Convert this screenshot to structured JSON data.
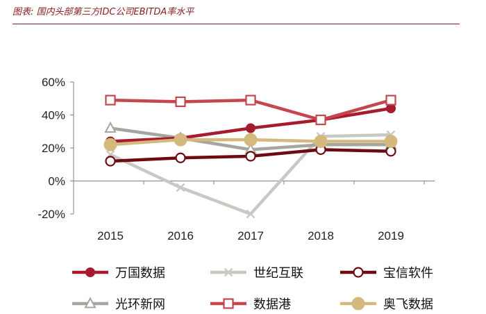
{
  "figure": {
    "title": "图表: 国内头部第三方IDC公司EBITDA率水平"
  },
  "chart_data": {
    "type": "line",
    "title": "图表: 国内头部第三方IDC公司EBITDA率水平",
    "xlabel": "",
    "ylabel": "",
    "categories": [
      "2015",
      "2016",
      "2017",
      "2018",
      "2019"
    ],
    "ylim": [
      -20,
      60
    ],
    "yticks": [
      -20,
      0,
      20,
      40,
      60
    ],
    "ytick_labels": [
      "-20%",
      "0%",
      "20%",
      "40%",
      "60%"
    ],
    "grid": false,
    "legend_position": "bottom",
    "series": [
      {
        "name": "万国数据",
        "marker": "circle-filled",
        "color": "#a61c2e",
        "values": [
          24,
          26,
          32,
          37,
          44
        ]
      },
      {
        "name": "世纪互联",
        "marker": "x",
        "color": "#c9c9c3",
        "values": [
          16,
          -4,
          -20,
          27,
          28
        ]
      },
      {
        "name": "宝信软件",
        "marker": "circle-open",
        "color": "#6e0a12",
        "values": [
          12,
          14,
          15,
          19,
          18
        ]
      },
      {
        "name": "光环新网",
        "marker": "triangle-open",
        "color": "#a6a6a0",
        "values": [
          32,
          26,
          19,
          22,
          22
        ]
      },
      {
        "name": "数据港",
        "marker": "square-open",
        "color": "#c5474e",
        "values": [
          49,
          48,
          49,
          37,
          49
        ]
      },
      {
        "name": "奥飞数据",
        "marker": "circle-filled",
        "color": "#d4b97e",
        "values": [
          22,
          25,
          25,
          24,
          24
        ]
      }
    ]
  }
}
